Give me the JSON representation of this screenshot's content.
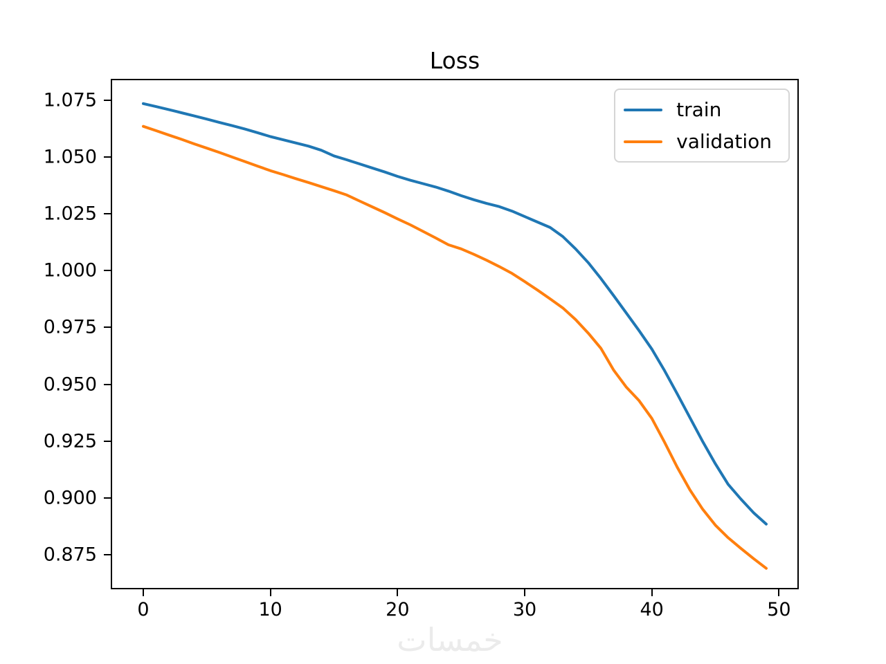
{
  "watermark": "خمسات",
  "chart_data": {
    "type": "line",
    "title": "Loss",
    "xlabel": "",
    "ylabel": "",
    "grid": false,
    "legend_position": "upper right",
    "background": "#ffffff",
    "xlim": [
      -2.45,
      51.45
    ],
    "ylim": [
      0.8604,
      1.0838
    ],
    "xticks": [
      0,
      10,
      20,
      30,
      40,
      50
    ],
    "yticks": [
      0.875,
      0.9,
      0.925,
      0.95,
      0.975,
      1.0,
      1.025,
      1.05,
      1.075
    ],
    "x": [
      0,
      1,
      2,
      3,
      4,
      5,
      6,
      7,
      8,
      9,
      10,
      11,
      12,
      13,
      14,
      15,
      16,
      17,
      18,
      19,
      20,
      21,
      22,
      23,
      24,
      25,
      26,
      27,
      28,
      29,
      30,
      31,
      32,
      33,
      34,
      35,
      36,
      37,
      38,
      39,
      40,
      41,
      42,
      43,
      44,
      45,
      46,
      47,
      48,
      49
    ],
    "series": [
      {
        "name": "train",
        "color": "#1f77b4",
        "values": [
          1.0735,
          1.0722,
          1.0709,
          1.0695,
          1.0681,
          1.0667,
          1.0652,
          1.0638,
          1.0623,
          1.0607,
          1.059,
          1.0576,
          1.0562,
          1.0548,
          1.053,
          1.0505,
          1.0488,
          1.047,
          1.0452,
          1.0434,
          1.0415,
          1.0398,
          1.0383,
          1.0368,
          1.035,
          1.033,
          1.0312,
          1.0296,
          1.0282,
          1.0262,
          1.0238,
          1.0214,
          1.019,
          1.015,
          1.0096,
          1.0035,
          0.9965,
          0.989,
          0.9813,
          0.9736,
          0.9655,
          0.956,
          0.9458,
          0.9353,
          0.9248,
          0.915,
          0.906,
          0.8995,
          0.8935,
          0.8885
        ]
      },
      {
        "name": "validation",
        "color": "#ff7f0e",
        "values": [
          1.0635,
          1.0616,
          1.0597,
          1.0578,
          1.0558,
          1.0539,
          1.052,
          1.05,
          1.048,
          1.046,
          1.044,
          1.0423,
          1.0405,
          1.0388,
          1.037,
          1.0352,
          1.0333,
          1.0307,
          1.0281,
          1.0255,
          1.0228,
          1.0202,
          1.0173,
          1.0144,
          1.0114,
          1.0096,
          1.0072,
          1.0046,
          1.0018,
          0.9988,
          0.9952,
          0.9915,
          0.9876,
          0.9836,
          0.9785,
          0.9725,
          0.9658,
          0.9562,
          0.9487,
          0.9428,
          0.935,
          0.9245,
          0.9135,
          0.9035,
          0.895,
          0.888,
          0.8825,
          0.8778,
          0.8733,
          0.869
        ]
      }
    ]
  }
}
